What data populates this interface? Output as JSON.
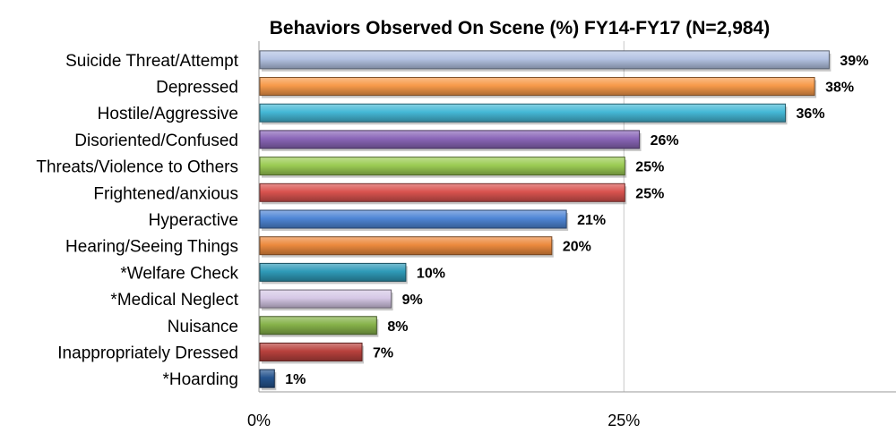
{
  "chart_data": {
    "type": "bar",
    "orientation": "horizontal",
    "title": "Behaviors Observed On Scene (%) FY14-FY17 (N=2,984)",
    "categories": [
      "Suicide Threat/Attempt",
      "Depressed",
      "Hostile/Aggressive",
      "Disoriented/Confused",
      "Threats/Violence to Others",
      "Frightened/anxious",
      "Hyperactive",
      "Hearing/Seeing Things",
      "*Welfare Check",
      "*Medical Neglect",
      "Nuisance",
      "Inappropriately Dressed",
      "*Hoarding"
    ],
    "values": [
      39,
      38,
      36,
      26,
      25,
      25,
      21,
      20,
      10,
      9,
      8,
      7,
      1
    ],
    "value_labels": [
      "39%",
      "38%",
      "36%",
      "26%",
      "25%",
      "25%",
      "21%",
      "20%",
      "10%",
      "9%",
      "8%",
      "7%",
      "1%"
    ],
    "colors": [
      "#b4c3e3",
      "#f79a4a",
      "#45b8d6",
      "#8a66b8",
      "#9ccc54",
      "#d9534f",
      "#4f86d6",
      "#ec8a3e",
      "#2f9ab8",
      "#d6c8e6",
      "#86b24a",
      "#b8413d",
      "#25548f"
    ],
    "xlim": [
      0,
      40
    ],
    "xticks": [
      0,
      25
    ],
    "xtick_labels": [
      "0%",
      "25%"
    ],
    "grid": "vertical"
  }
}
